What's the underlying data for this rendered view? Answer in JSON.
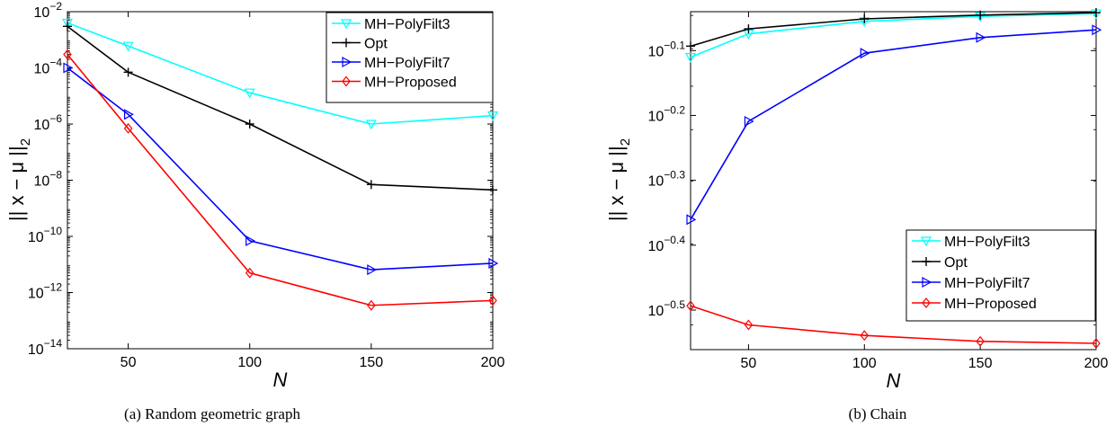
{
  "chart_data": [
    {
      "type": "line",
      "caption": "(a) Random geometric graph",
      "xlabel": "N",
      "ylabel": "|| x − μ ||",
      "ylabel_subscript": "2",
      "yscale": "log",
      "x": [
        25,
        50,
        100,
        150,
        200
      ],
      "xlim": [
        25,
        200
      ],
      "ylim": [
        1e-14,
        0.01
      ],
      "xticks": [
        50,
        100,
        150,
        200
      ],
      "xtick_labels": [
        "50",
        "100",
        "150",
        "200"
      ],
      "yticks": [
        1e-14,
        1e-12,
        1e-10,
        1e-08,
        1e-06,
        0.0001,
        0.01
      ],
      "ytick_bases": [
        "10",
        "10",
        "10",
        "10",
        "10",
        "10",
        "10"
      ],
      "ytick_exps": [
        "−14",
        "−12",
        "−10",
        "−8",
        "−6",
        "−4",
        "−2"
      ],
      "grid": false,
      "legend_position": "top-right",
      "series": [
        {
          "name": "MH−PolyFilt3",
          "color": "#00ffff",
          "marker": "triangle-down",
          "values": [
            0.004,
            0.0006,
            1.3e-05,
            1e-06,
            2e-06
          ]
        },
        {
          "name": "Opt",
          "color": "#000000",
          "marker": "plus",
          "values": [
            0.003,
            7e-05,
            1e-06,
            7e-09,
            4.5e-09
          ]
        },
        {
          "name": "MH−PolyFilt7",
          "color": "#0000ff",
          "marker": "triangle-right",
          "values": [
            0.0001,
            2.2e-06,
            7e-11,
            6.5e-12,
            1.1e-11
          ]
        },
        {
          "name": "MH−Proposed",
          "color": "#ff0000",
          "marker": "diamond",
          "values": [
            0.0003,
            7e-07,
            5e-12,
            3.5e-13,
            5.2e-13
          ]
        }
      ]
    },
    {
      "type": "line",
      "caption": "(b) Chain",
      "xlabel": "N",
      "ylabel": "|| x − μ ||",
      "ylabel_subscript": "2",
      "yscale": "log",
      "x": [
        25,
        50,
        100,
        150,
        200
      ],
      "xlim": [
        25,
        200
      ],
      "ylim": [
        0.2748,
        0.912
      ],
      "xticks": [
        50,
        100,
        150,
        200
      ],
      "xtick_labels": [
        "50",
        "100",
        "150",
        "200"
      ],
      "yticks": [
        0.3162,
        0.3981,
        0.5012,
        0.631,
        0.7943
      ],
      "ytick_bases": [
        "10",
        "10",
        "10",
        "10",
        "10"
      ],
      "ytick_exps": [
        "−0.5",
        "−0.4",
        "−0.3",
        "−0.2",
        "−0.1"
      ],
      "grid": false,
      "legend_position": "bottom-right",
      "series": [
        {
          "name": "MH−PolyFilt3",
          "color": "#00ffff",
          "marker": "triangle-down",
          "values": [
            0.776,
            0.843,
            0.881,
            0.897,
            0.906
          ]
        },
        {
          "name": "Opt",
          "color": "#000000",
          "marker": "plus",
          "values": [
            0.807,
            0.858,
            0.889,
            0.901,
            0.909
          ]
        },
        {
          "name": "MH−PolyFilt7",
          "color": "#0000ff",
          "marker": "triangle-right",
          "values": [
            0.436,
            0.618,
            0.787,
            0.832,
            0.855
          ]
        },
        {
          "name": "MH−Proposed",
          "color": "#ff0000",
          "marker": "diamond",
          "values": [
            0.321,
            0.3,
            0.289,
            0.283,
            0.281
          ]
        }
      ]
    }
  ]
}
